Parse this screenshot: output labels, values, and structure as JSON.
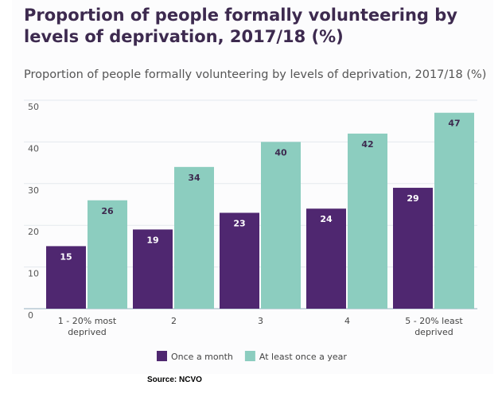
{
  "title": "Proportion of people formally volunteering by levels of deprivation, 2017/18 (%)",
  "source": "Source: NCVO",
  "chart_data": {
    "type": "bar",
    "title": "Proportion of people formally volunteering by levels of deprivation, 2017/18 (%)",
    "categories": [
      [
        "1 - 20% most",
        "deprived"
      ],
      [
        "2"
      ],
      [
        "3"
      ],
      [
        "4"
      ],
      [
        "5 - 20% least",
        "deprived"
      ]
    ],
    "series": [
      {
        "name": "Once a month",
        "color": "#4f2770",
        "label_color": "#ffffff",
        "values": [
          15,
          19,
          23,
          24,
          29
        ]
      },
      {
        "name": "At least once a year",
        "color": "#8ccdbf",
        "label_color": "#3d2a4f",
        "values": [
          26,
          34,
          40,
          42,
          47
        ]
      }
    ],
    "yticks": [
      0,
      10,
      20,
      30,
      40,
      50
    ],
    "ylim": [
      0,
      50
    ],
    "xlabel": "",
    "ylabel": "",
    "grid": true,
    "legend": "bottom-center"
  }
}
